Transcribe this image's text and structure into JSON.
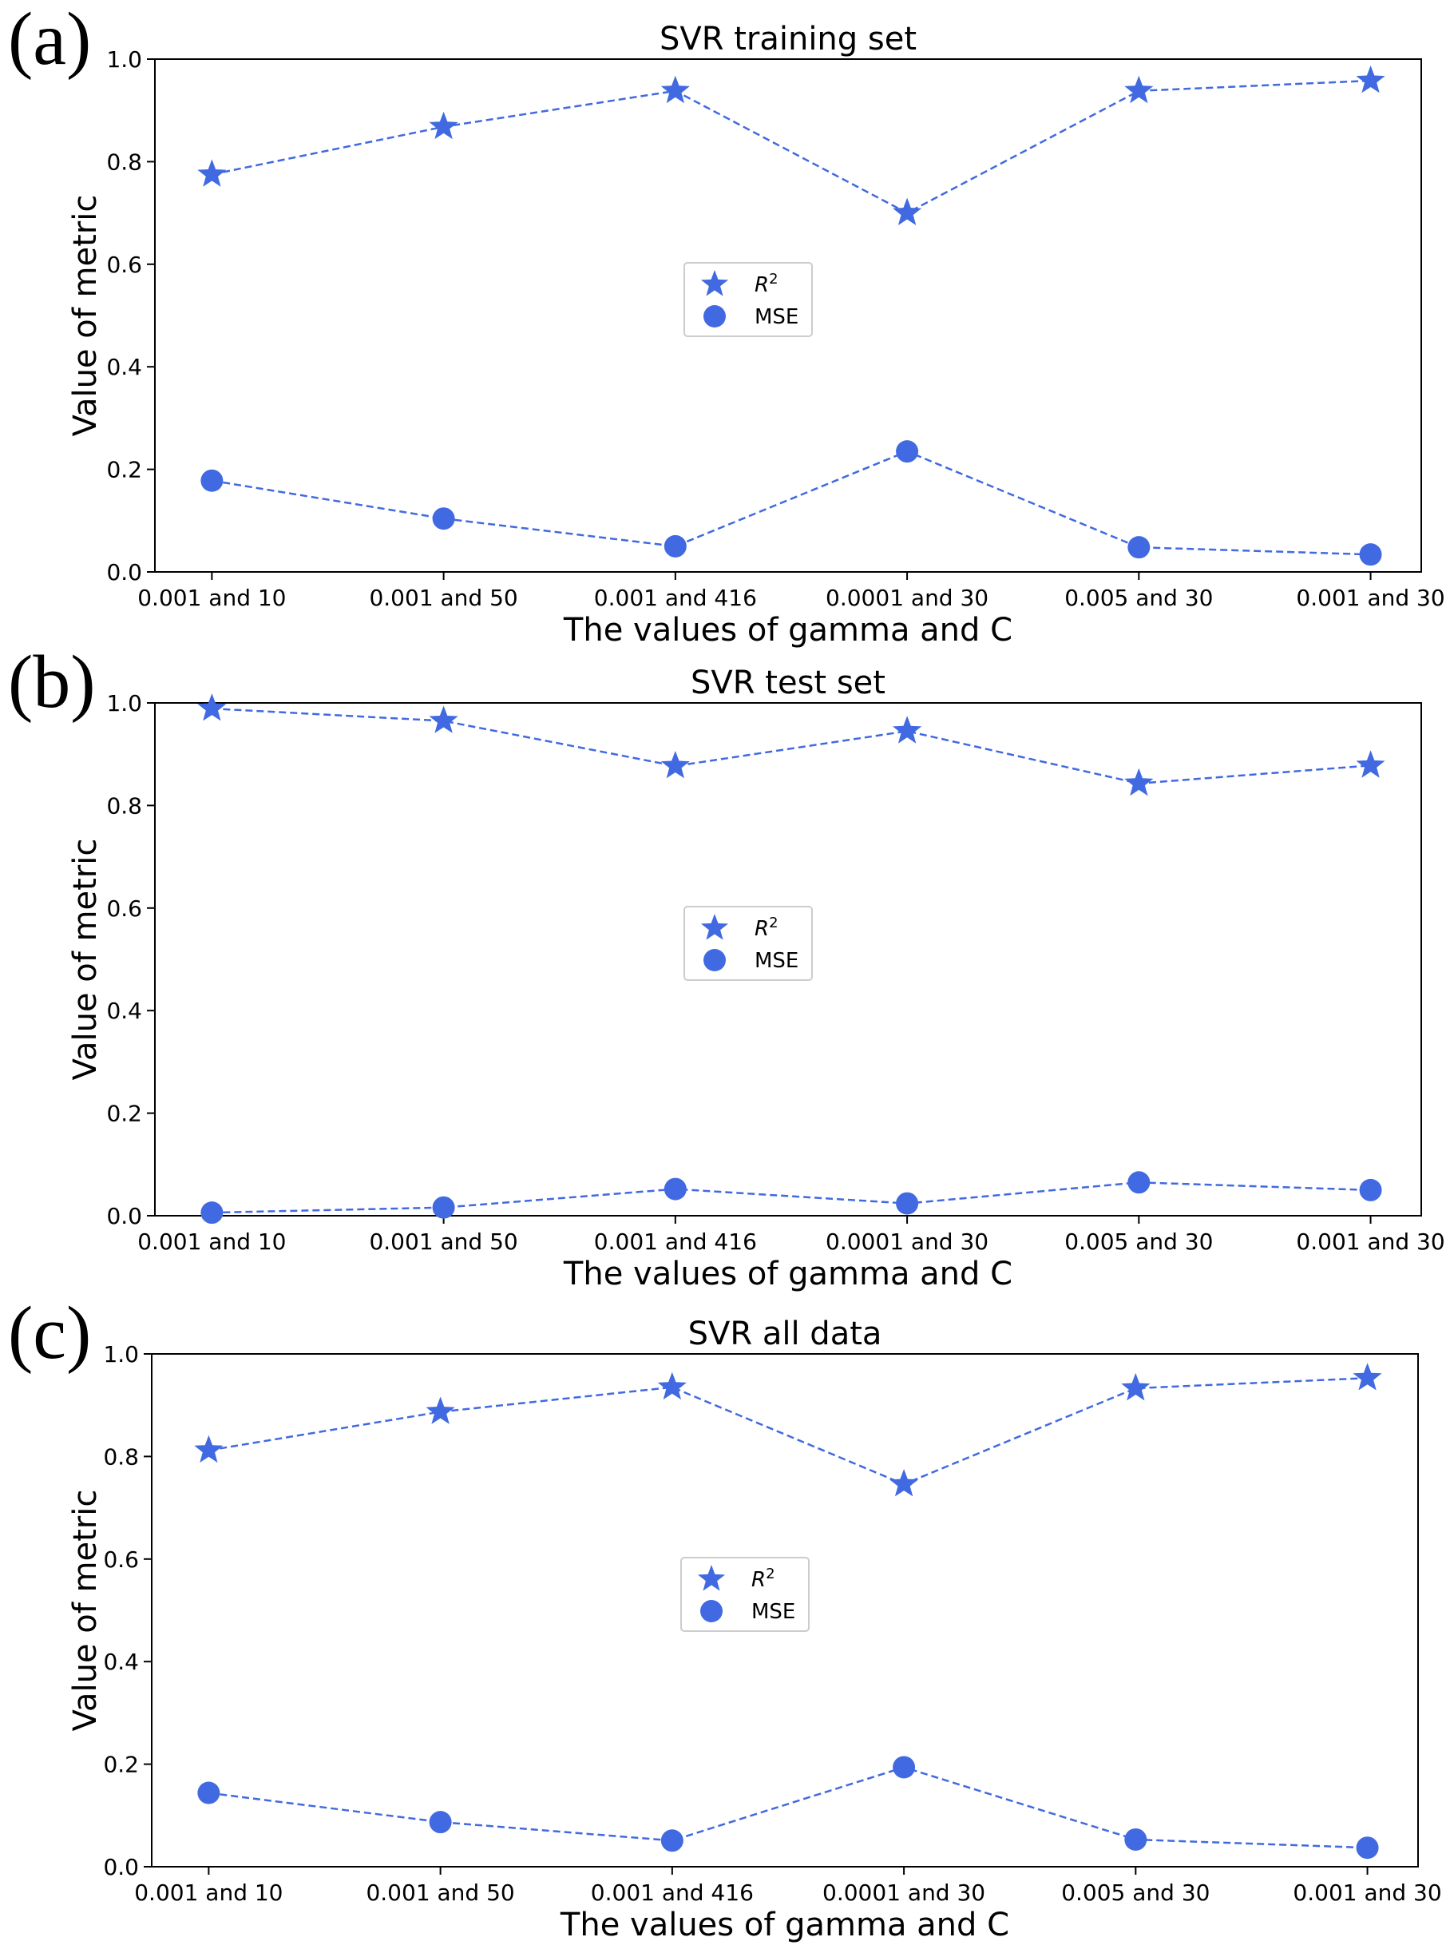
{
  "chart_data": [
    {
      "type": "line",
      "panel_label": "(a)",
      "title": "SVR training set",
      "xlabel": "The values of gamma and C",
      "ylabel": "Value of metric",
      "categories": [
        "0.001 and 10",
        "0.001 and 50",
        "0.001 and 416",
        "0.0001 and 30",
        "0.005 and 30",
        "0.001 and 30"
      ],
      "ylim": [
        0,
        1.0
      ],
      "yticks": [
        "0.0",
        "0.2",
        "0.4",
        "0.6",
        "0.8",
        "1.0"
      ],
      "legend": {
        "position": "center",
        "r2_base": "R",
        "r2_sup": "2",
        "mse_label": "MSE"
      },
      "series": [
        {
          "name": "R2",
          "marker": "star",
          "values": [
            0.775,
            0.868,
            0.938,
            0.7,
            0.938,
            0.958
          ]
        },
        {
          "name": "MSE",
          "marker": "circle",
          "values": [
            0.178,
            0.104,
            0.05,
            0.235,
            0.048,
            0.034
          ]
        }
      ]
    },
    {
      "type": "line",
      "panel_label": "(b)",
      "title": "SVR test set",
      "xlabel": "The values of gamma and C",
      "ylabel": "Value of metric",
      "categories": [
        "0.001 and 10",
        "0.001 and 50",
        "0.001 and 416",
        "0.0001 and 30",
        "0.005 and 30",
        "0.001 and 30"
      ],
      "ylim": [
        0,
        1.0
      ],
      "yticks": [
        "0.0",
        "0.2",
        "0.4",
        "0.6",
        "0.8",
        "1.0"
      ],
      "legend": {
        "position": "center",
        "r2_base": "R",
        "r2_sup": "2",
        "mse_label": "MSE"
      },
      "series": [
        {
          "name": "R2",
          "marker": "star",
          "values": [
            0.989,
            0.965,
            0.877,
            0.945,
            0.843,
            0.878
          ]
        },
        {
          "name": "MSE",
          "marker": "circle",
          "values": [
            0.006,
            0.016,
            0.052,
            0.024,
            0.065,
            0.05
          ]
        }
      ]
    },
    {
      "type": "line",
      "panel_label": "(c)",
      "title": "SVR all data",
      "xlabel": "The values of gamma and C",
      "ylabel": "Value of metric",
      "categories": [
        "0.001 and 10",
        "0.001 and 50",
        "0.001 and 416",
        "0.0001 and 30",
        "0.005 and 30",
        "0.001 and 30"
      ],
      "ylim": [
        0,
        1.0
      ],
      "yticks": [
        "0.0",
        "0.2",
        "0.4",
        "0.6",
        "0.8",
        "1.0"
      ],
      "legend": {
        "position": "center",
        "r2_base": "R",
        "r2_sup": "2",
        "mse_label": "MSE"
      },
      "series": [
        {
          "name": "R2",
          "marker": "star",
          "values": [
            0.812,
            0.887,
            0.935,
            0.746,
            0.933,
            0.953
          ]
        },
        {
          "name": "MSE",
          "marker": "circle",
          "values": [
            0.144,
            0.087,
            0.051,
            0.194,
            0.053,
            0.037
          ]
        }
      ]
    }
  ],
  "colors": {
    "series": "#4169e1",
    "axis": "#000000",
    "legend_border": "#cccccc"
  }
}
